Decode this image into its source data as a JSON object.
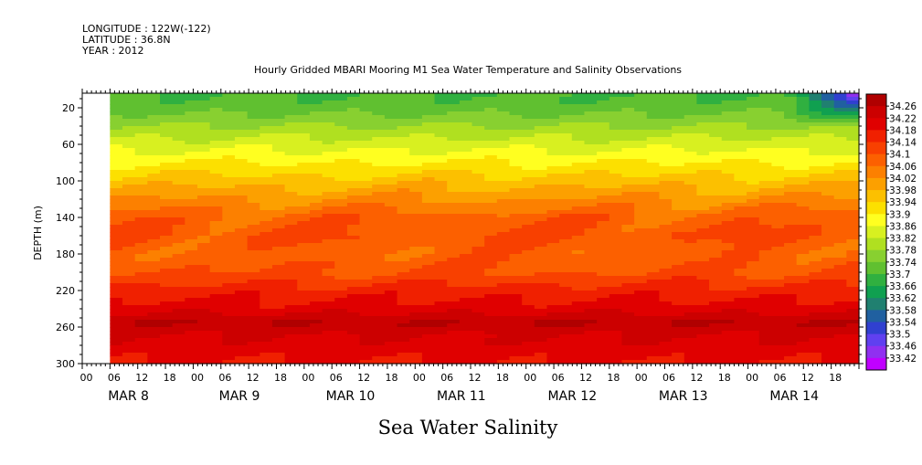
{
  "header": {
    "longitude": "LONGITUDE : 122W(-122)",
    "latitude": "LATITUDE : 36.8N",
    "year": "YEAR : 2012",
    "title": "Hourly Gridded MBARI Mooring M1 Sea Water Temperature and Salinity Observations"
  },
  "footer": {
    "label": "Sea Water Salinity"
  },
  "chart_data": {
    "type": "heatmap",
    "title": "Hourly Gridded MBARI Mooring M1 Sea Water Temperature and Salinity Observations",
    "xlabel": "",
    "ylabel": "DEPTH (m)",
    "y_ticks": [
      20,
      60,
      100,
      140,
      180,
      220,
      260,
      300
    ],
    "ylim": [
      300,
      4
    ],
    "x_hour_ticks": [
      "00",
      "06",
      "12",
      "18",
      "00",
      "06",
      "12",
      "18",
      "00",
      "06",
      "12",
      "18",
      "00",
      "06",
      "12",
      "18",
      "00",
      "06",
      "12",
      "18",
      "00",
      "06",
      "12",
      "18",
      "00",
      "06",
      "12",
      "18"
    ],
    "x_day_labels": [
      "MAR  8",
      "MAR  9",
      "MAR 10",
      "MAR 11",
      "MAR 12",
      "MAR 13",
      "MAR 14"
    ],
    "x_range_hours": [
      0,
      168
    ],
    "data_start_hour": 6,
    "colorbar": {
      "levels": [
        "34.26",
        "34.22",
        "34.18",
        "34.14",
        "34.1",
        "34.06",
        "34.02",
        "33.98",
        "33.94",
        "33.9",
        "33.86",
        "33.82",
        "33.78",
        "33.74",
        "33.7",
        "33.66",
        "33.62",
        "33.58",
        "33.54",
        "33.5",
        "33.46",
        "33.42"
      ],
      "colors": [
        "#b00000",
        "#cc0000",
        "#e00000",
        "#f02000",
        "#f84000",
        "#fc6000",
        "#fc8000",
        "#fca000",
        "#fcc000",
        "#fce000",
        "#ffff20",
        "#d8f020",
        "#b0e020",
        "#88d030",
        "#60c030",
        "#30b040",
        "#10a050",
        "#208070",
        "#2060a0",
        "#3040d0",
        "#6040f0",
        "#9030f0",
        "#c000ff"
      ]
    },
    "depth_profile": [
      {
        "depth": 5,
        "value": 33.7
      },
      {
        "depth": 20,
        "value": 33.72
      },
      {
        "depth": 40,
        "value": 33.78
      },
      {
        "depth": 60,
        "value": 33.84
      },
      {
        "depth": 80,
        "value": 33.9
      },
      {
        "depth": 100,
        "value": 33.96
      },
      {
        "depth": 120,
        "value": 34.02
      },
      {
        "depth": 140,
        "value": 34.08
      },
      {
        "depth": 160,
        "value": 34.1
      },
      {
        "depth": 180,
        "value": 34.08
      },
      {
        "depth": 200,
        "value": 34.1
      },
      {
        "depth": 220,
        "value": 34.16
      },
      {
        "depth": 240,
        "value": 34.2
      },
      {
        "depth": 255,
        "value": 34.26
      },
      {
        "depth": 270,
        "value": 34.22
      },
      {
        "depth": 300,
        "value": 34.18
      }
    ]
  }
}
